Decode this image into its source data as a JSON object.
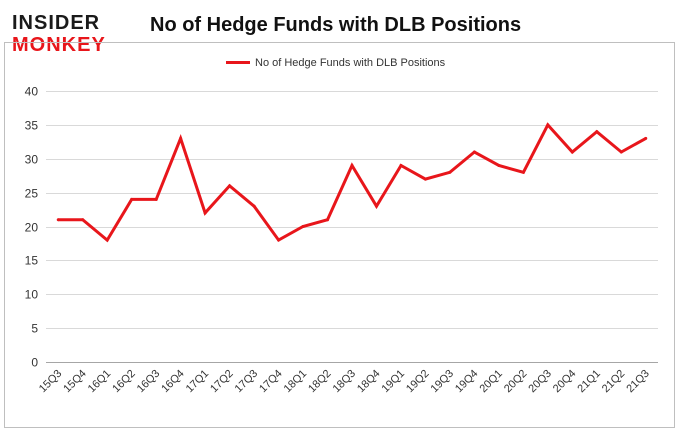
{
  "logo": {
    "line1": "INSIDER",
    "line2": "MONKEY"
  },
  "title": "No of Hedge Funds with DLB Positions",
  "colors": {
    "line": "#e8161b",
    "grid": "#d9d9d9",
    "frame": "#bfbfbf",
    "text": "#333333"
  },
  "chart_data": {
    "type": "line",
    "title": "No of Hedge Funds with DLB Positions",
    "categories": [
      "15Q3",
      "15Q4",
      "16Q1",
      "16Q2",
      "16Q3",
      "16Q4",
      "17Q1",
      "17Q2",
      "17Q3",
      "17Q4",
      "18Q1",
      "18Q2",
      "18Q3",
      "18Q4",
      "19Q1",
      "19Q2",
      "19Q3",
      "19Q4",
      "20Q1",
      "20Q2",
      "20Q3",
      "20Q4",
      "21Q1",
      "21Q2",
      "21Q3"
    ],
    "series": [
      {
        "name": "No of Hedge Funds with DLB Positions",
        "values": [
          21,
          21,
          18,
          24,
          24,
          33,
          22,
          26,
          23,
          18,
          20,
          21,
          29,
          23,
          29,
          27,
          28,
          31,
          29,
          28,
          35,
          31,
          34,
          31,
          33
        ]
      }
    ],
    "ylim": [
      0,
      40
    ],
    "yticks": [
      0,
      5,
      10,
      15,
      20,
      25,
      30,
      35,
      40
    ],
    "grid": true,
    "legend_position": "top-center",
    "xlabel": "",
    "ylabel": ""
  }
}
